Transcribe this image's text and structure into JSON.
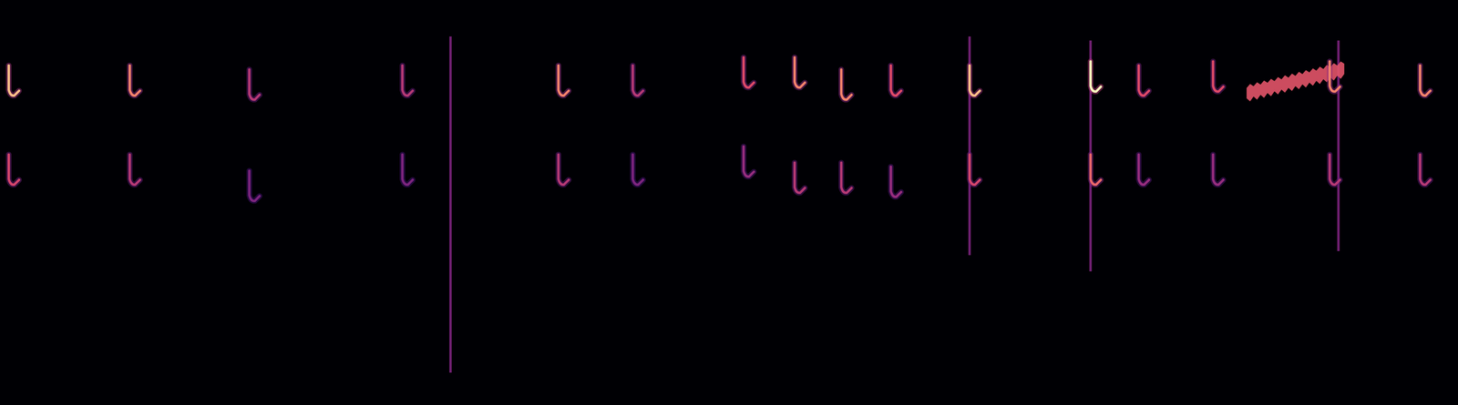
{
  "chart_data": {
    "type": "spectrogram",
    "xlim": [
      0,
      100
    ],
    "ylim": [
      0,
      100
    ],
    "zlim": [
      0,
      1
    ],
    "tick_labels": false,
    "grid": false,
    "x": [
      0.6,
      8.9,
      17.1,
      27.6,
      38.3,
      43.4,
      51.0,
      54.5,
      57.7,
      61.1,
      66.5,
      74.8,
      78.1,
      83.2,
      91.2,
      97.4
    ],
    "values": [
      77,
      77,
      76,
      77,
      77,
      77,
      79,
      79,
      76,
      77,
      77,
      78,
      77,
      78,
      78,
      77
    ],
    "low": [
      55,
      55,
      51,
      55,
      55,
      55,
      57,
      53,
      53,
      52,
      55,
      55,
      55,
      55,
      55,
      55
    ],
    "intensity": [
      0.9,
      0.8,
      0.6,
      0.6,
      0.8,
      0.6,
      0.7,
      0.8,
      0.8,
      0.7,
      0.9,
      1.0,
      0.7,
      0.7,
      0.8,
      0.8
    ],
    "broadband_x": [
      30.9,
      66.5,
      74.8,
      91.8
    ],
    "broadband_low": [
      8,
      37,
      33,
      38
    ],
    "broadband_high": [
      91,
      91,
      90,
      90
    ],
    "trill_x": [
      85.5,
      92.2
    ],
    "trill_freq": [
      77,
      83
    ]
  }
}
